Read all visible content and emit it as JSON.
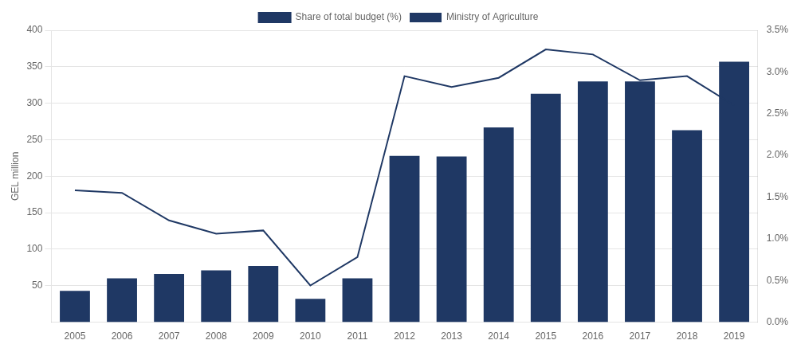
{
  "chart_data": {
    "type": "bar",
    "ylabel": "GEL million",
    "categories": [
      "2005",
      "2006",
      "2007",
      "2008",
      "2009",
      "2010",
      "2011",
      "2012",
      "2013",
      "2014",
      "2015",
      "2016",
      "2017",
      "2018",
      "2019"
    ],
    "series": [
      {
        "name": "Ministry of Agriculture",
        "type": "bar",
        "color": "#1f3864",
        "values": [
          43,
          60,
          66,
          71,
          77,
          32,
          60,
          228,
          227,
          267,
          313,
          330,
          330,
          263,
          357
        ]
      },
      {
        "name": "Share of total budget (%)",
        "type": "line",
        "color": "#1f3864",
        "axis": "y2",
        "values": [
          1.58,
          1.55,
          1.22,
          1.06,
          1.1,
          0.44,
          0.78,
          2.95,
          2.82,
          2.93,
          3.27,
          3.21,
          2.9,
          2.95,
          2.6
        ]
      }
    ],
    "ylim": [
      0,
      400
    ],
    "yticks": [
      50,
      100,
      150,
      200,
      250,
      300,
      350,
      400
    ],
    "y2lim": [
      0.0,
      3.5
    ],
    "y2ticks": [
      {
        "value": 0.0,
        "label": "0.0%"
      },
      {
        "value": 0.5,
        "label": "0.5%"
      },
      {
        "value": 1.0,
        "label": "1.0%"
      },
      {
        "value": 1.5,
        "label": "1.5%"
      },
      {
        "value": 2.0,
        "label": "2.0%"
      },
      {
        "value": 2.5,
        "label": "2.5%"
      },
      {
        "value": 3.0,
        "label": "3.0%"
      },
      {
        "value": 3.5,
        "label": "3.5%"
      }
    ],
    "grid": true,
    "legend": "top"
  }
}
